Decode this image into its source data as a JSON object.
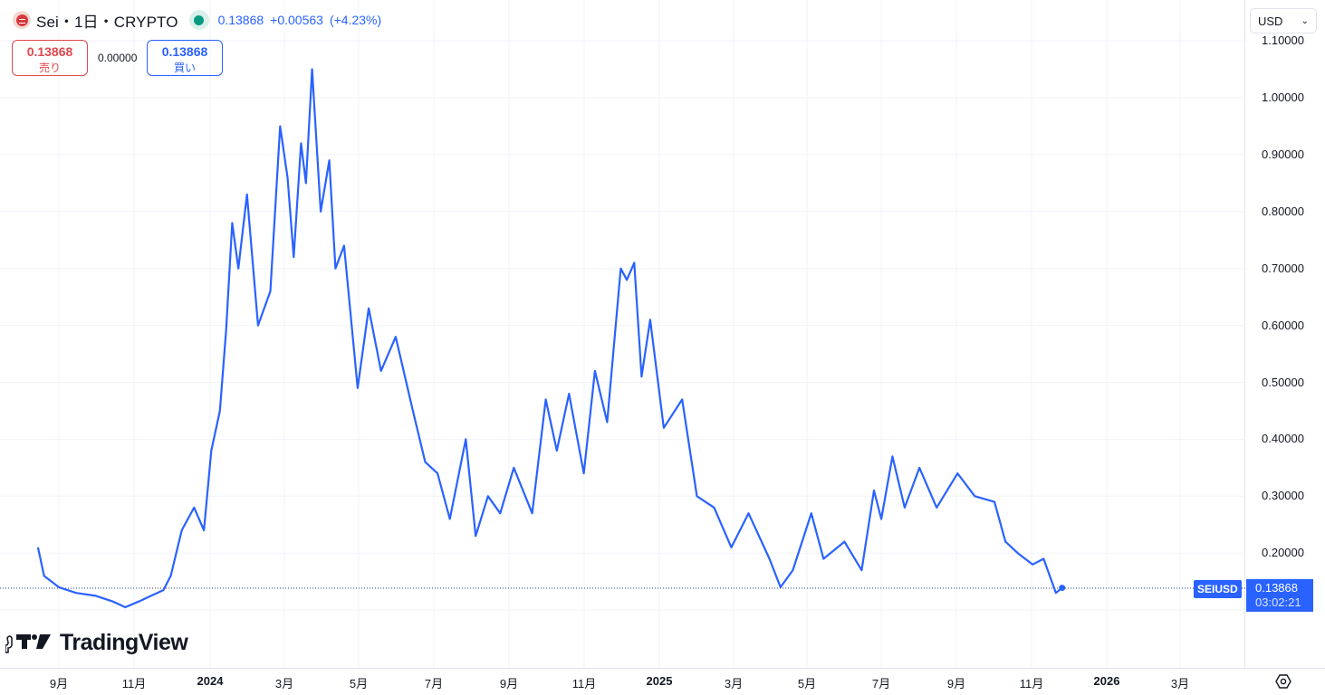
{
  "header": {
    "symbol_title": "Sei・1日・CRYPTO",
    "last_price": "0.13868",
    "change": "+0.00563",
    "change_pct": "(+4.23%)",
    "market_status_color": "#089981"
  },
  "trade": {
    "sell_price": "0.13868",
    "sell_label": "売り",
    "spread": "0.00000",
    "buy_price": "0.13868",
    "buy_label": "買い"
  },
  "currency_selector": {
    "value": "USD"
  },
  "price_axis": {
    "labels": [
      "1.10000",
      "1.00000",
      "0.90000",
      "0.80000",
      "0.70000",
      "0.60000",
      "0.50000",
      "0.40000",
      "0.30000",
      "0.20000"
    ]
  },
  "time_axis": {
    "labels": [
      "9月",
      "11月",
      "2024",
      "3月",
      "5月",
      "7月",
      "9月",
      "11月",
      "2025",
      "3月",
      "5月",
      "7月",
      "9月",
      "11月",
      "2026",
      "3月"
    ]
  },
  "current_price_tag": {
    "symbol": "SEIUSD",
    "price": "0.13868",
    "countdown": "03:02:21"
  },
  "branding": {
    "name": "TradingView"
  },
  "colors": {
    "line": "#2962ff",
    "sell": "#e0474f",
    "buy": "#2962ff",
    "grid": "#f0f3fa"
  },
  "chart_data": {
    "type": "line",
    "title": "Sei・1日・CRYPTO (SEIUSD)",
    "xlabel": "",
    "ylabel": "USD",
    "ylim": [
      0.08,
      1.12
    ],
    "grid": true,
    "legend_position": "top-left",
    "x_tick_labels": [
      "9月",
      "11月",
      "2024",
      "3月",
      "5月",
      "7月",
      "9月",
      "11月",
      "2025",
      "3月",
      "5月",
      "7月",
      "9月",
      "11月",
      "2026",
      "3月"
    ],
    "y_tick_labels": [
      "0.20000",
      "0.30000",
      "0.40000",
      "0.50000",
      "0.60000",
      "0.70000",
      "0.80000",
      "0.90000",
      "1.00000",
      "1.10000"
    ],
    "series": [
      {
        "name": "SEIUSD",
        "x": [
          "2023-08-15",
          "2023-08-20",
          "2023-09-01",
          "2023-09-15",
          "2023-10-01",
          "2023-10-15",
          "2023-10-25",
          "2023-11-05",
          "2023-11-15",
          "2023-11-25",
          "2023-12-01",
          "2023-12-10",
          "2023-12-20",
          "2023-12-28",
          "2024-01-03",
          "2024-01-10",
          "2024-01-15",
          "2024-01-20",
          "2024-01-25",
          "2024-02-01",
          "2024-02-10",
          "2024-02-20",
          "2024-02-28",
          "2024-03-05",
          "2024-03-10",
          "2024-03-16",
          "2024-03-20",
          "2024-03-25",
          "2024-04-01",
          "2024-04-08",
          "2024-04-13",
          "2024-04-20",
          "2024-05-01",
          "2024-05-10",
          "2024-05-20",
          "2024-06-01",
          "2024-06-15",
          "2024-06-25",
          "2024-07-05",
          "2024-07-15",
          "2024-07-28",
          "2024-08-05",
          "2024-08-15",
          "2024-08-25",
          "2024-09-05",
          "2024-09-20",
          "2024-10-01",
          "2024-10-10",
          "2024-10-20",
          "2024-11-01",
          "2024-11-10",
          "2024-11-20",
          "2024-12-01",
          "2024-12-06",
          "2024-12-12",
          "2024-12-18",
          "2024-12-25",
          "2025-01-05",
          "2025-01-20",
          "2025-02-01",
          "2025-02-15",
          "2025-03-01",
          "2025-03-15",
          "2025-04-01",
          "2025-04-10",
          "2025-04-20",
          "2025-05-05",
          "2025-05-15",
          "2025-06-01",
          "2025-06-15",
          "2025-06-25",
          "2025-07-01",
          "2025-07-10",
          "2025-07-20",
          "2025-08-01",
          "2025-08-15",
          "2025-09-01",
          "2025-09-15",
          "2025-10-01",
          "2025-10-10",
          "2025-10-20",
          "2025-11-01",
          "2025-11-10",
          "2025-11-20",
          "2025-11-25"
        ],
        "values": [
          0.21,
          0.16,
          0.14,
          0.13,
          0.125,
          0.115,
          0.105,
          0.115,
          0.125,
          0.135,
          0.16,
          0.24,
          0.28,
          0.24,
          0.38,
          0.45,
          0.59,
          0.78,
          0.7,
          0.83,
          0.6,
          0.66,
          0.95,
          0.86,
          0.72,
          0.92,
          0.85,
          1.05,
          0.8,
          0.89,
          0.7,
          0.74,
          0.49,
          0.63,
          0.52,
          0.58,
          0.45,
          0.36,
          0.34,
          0.26,
          0.4,
          0.23,
          0.3,
          0.27,
          0.35,
          0.27,
          0.47,
          0.38,
          0.48,
          0.34,
          0.52,
          0.43,
          0.7,
          0.68,
          0.71,
          0.51,
          0.61,
          0.42,
          0.47,
          0.3,
          0.28,
          0.21,
          0.27,
          0.19,
          0.14,
          0.17,
          0.27,
          0.19,
          0.22,
          0.17,
          0.31,
          0.26,
          0.37,
          0.28,
          0.35,
          0.28,
          0.34,
          0.3,
          0.29,
          0.22,
          0.2,
          0.18,
          0.19,
          0.13,
          0.139
        ]
      }
    ]
  }
}
